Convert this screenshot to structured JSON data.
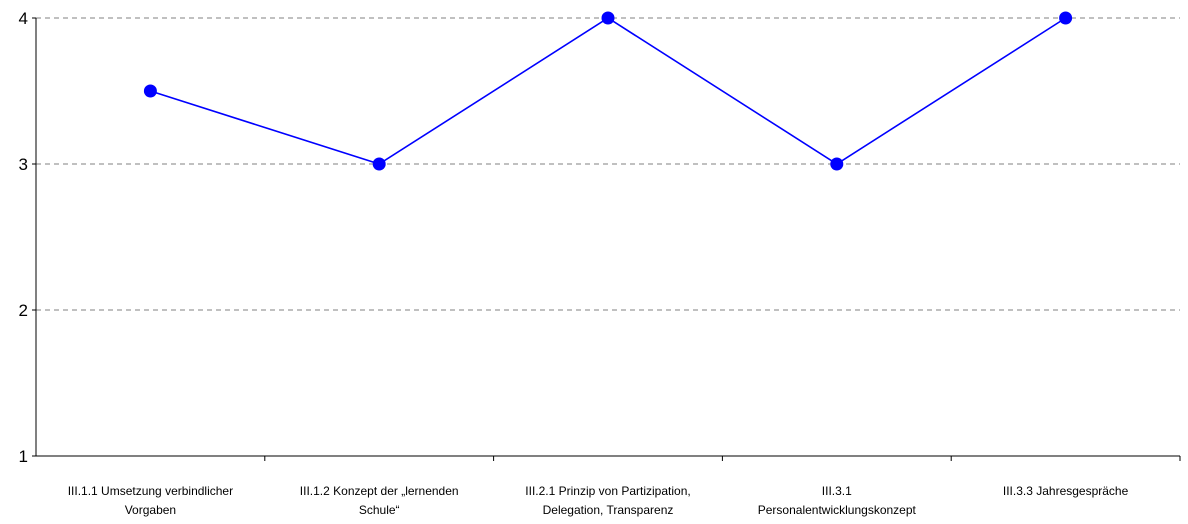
{
  "chart_data": {
    "type": "line",
    "title": "",
    "xlabel": "",
    "ylabel": "",
    "ylim": [
      1,
      4
    ],
    "yticks": [
      "1",
      "2",
      "3",
      "4"
    ],
    "grid": true,
    "legend": "none",
    "categories": [
      [
        "III.1.1 Umsetzung verbindlicher",
        "Vorgaben"
      ],
      [
        "III.1.2 Konzept der „lernenden",
        "Schule“"
      ],
      [
        "III.2.1 Prinzip von Partizipation,",
        "Delegation, Transparenz"
      ],
      [
        "III.3.1",
        "Personalentwicklungskonzept"
      ],
      [
        "III.3.3 Jahresgespräche"
      ]
    ],
    "series": [
      {
        "values": [
          3.5,
          3,
          4,
          3,
          4
        ],
        "color": "#0000ff"
      }
    ]
  }
}
